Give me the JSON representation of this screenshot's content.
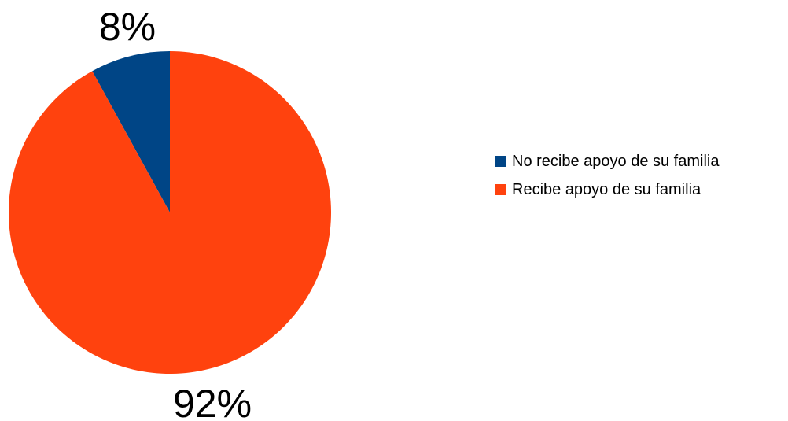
{
  "chart_data": {
    "type": "pie",
    "categories": [
      "No recibe apoyo de su familia",
      "Recibe apoyo de su familia"
    ],
    "values": [
      8,
      92
    ],
    "labels": [
      "8%",
      "92%"
    ],
    "colors": [
      "#004586",
      "#ff420e"
    ],
    "legend_position": "right",
    "start_angle_deg": 0,
    "direction": "counterclockwise"
  }
}
